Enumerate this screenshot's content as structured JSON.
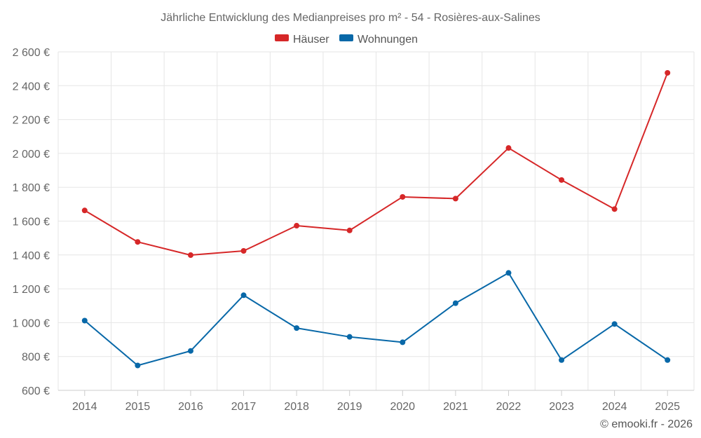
{
  "chart_data": {
    "type": "line",
    "title": "Jährliche Entwicklung des Medianpreises pro m² - 54 - Rosières-aux-Salines",
    "categories": [
      "2014",
      "2015",
      "2016",
      "2017",
      "2018",
      "2019",
      "2020",
      "2021",
      "2022",
      "2023",
      "2024",
      "2025"
    ],
    "series": [
      {
        "name": "Häuser",
        "color": "#d62728",
        "values": [
          1663,
          1477,
          1399,
          1424,
          1573,
          1545,
          1743,
          1733,
          2032,
          1843,
          1671,
          2476
        ]
      },
      {
        "name": "Wohnungen",
        "color": "#0868a8",
        "values": [
          1012,
          747,
          833,
          1162,
          968,
          916,
          884,
          1115,
          1294,
          779,
          992,
          779
        ]
      }
    ],
    "ylim": [
      600,
      2600
    ],
    "yticks": [
      600,
      800,
      1000,
      1200,
      1400,
      1600,
      1800,
      2000,
      2200,
      2400,
      2600
    ],
    "ytick_labels": [
      "600 €",
      "800 €",
      "1 000 €",
      "1 200 €",
      "1 400 €",
      "1 600 €",
      "1 800 €",
      "2 000 €",
      "2 200 €",
      "2 400 €",
      "2 600 €"
    ],
    "xlabel": "",
    "ylabel": "",
    "grid": true,
    "legend": "top-center"
  },
  "credit": "© emooki.fr - 2026"
}
